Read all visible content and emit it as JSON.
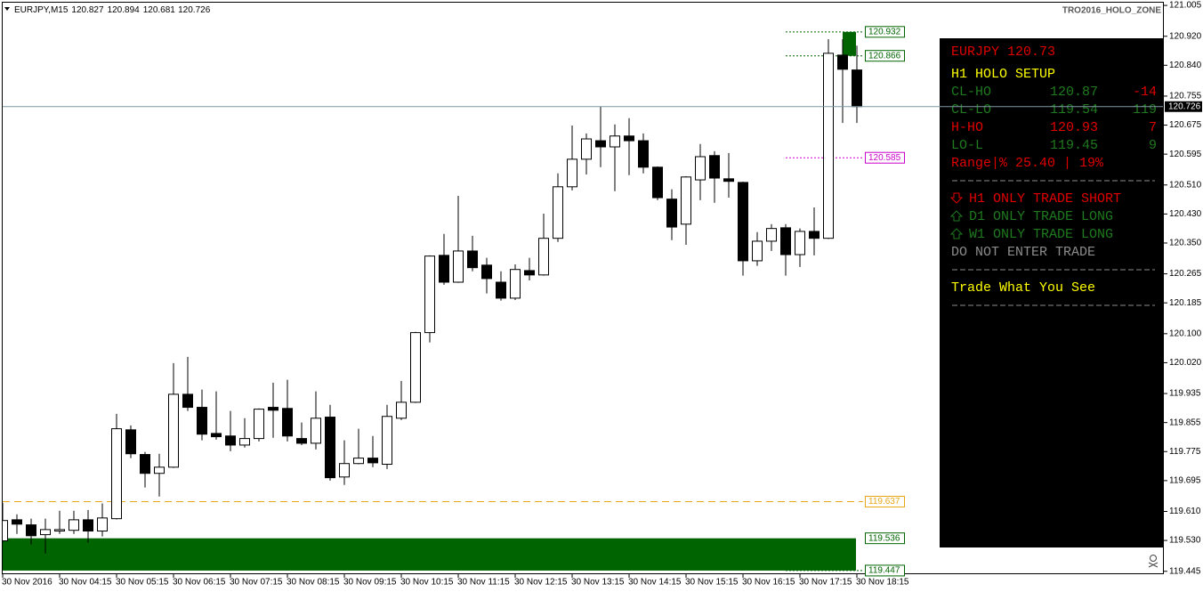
{
  "chart_data": {
    "type": "candlestick",
    "symbol": "EURJPY,M15",
    "watermark": "TRO2016_HOLO_ZONE",
    "up_color": "#ffffff",
    "down_color": "#000000",
    "categories": [
      "30 Nov 2016",
      null,
      null,
      null,
      "30 Nov 04:15",
      null,
      null,
      null,
      "30 Nov 05:15",
      null,
      null,
      null,
      "30 Nov 06:15",
      null,
      null,
      null,
      "30 Nov 07:15",
      null,
      null,
      null,
      "30 Nov 08:15",
      null,
      null,
      null,
      "30 Nov 09:15",
      null,
      null,
      null,
      "30 Nov 10:15",
      null,
      null,
      null,
      "30 Nov 11:15",
      null,
      null,
      null,
      "30 Nov 12:15",
      null,
      null,
      null,
      "30 Nov 13:15",
      null,
      null,
      null,
      "30 Nov 14:15",
      null,
      null,
      null,
      "30 Nov 15:15",
      null,
      null,
      null,
      "30 Nov 16:15",
      null,
      null,
      null,
      "30 Nov 17:15",
      null,
      null,
      null,
      "30 Nov 18:15"
    ],
    "candles": [
      {
        "open": 119.529,
        "high": 119.634,
        "low": 119.524,
        "close": 119.585
      },
      {
        "open": 119.587,
        "high": 119.602,
        "low": 119.548,
        "close": 119.575
      },
      {
        "open": 119.573,
        "high": 119.59,
        "low": 119.519,
        "close": 119.543
      },
      {
        "open": 119.546,
        "high": 119.59,
        "low": 119.494,
        "close": 119.56
      },
      {
        "open": 119.556,
        "high": 119.612,
        "low": 119.548,
        "close": 119.56
      },
      {
        "open": 119.558,
        "high": 119.612,
        "low": 119.548,
        "close": 119.587
      },
      {
        "open": 119.587,
        "high": 119.614,
        "low": 119.524,
        "close": 119.556
      },
      {
        "open": 119.556,
        "high": 119.632,
        "low": 119.541,
        "close": 119.592
      },
      {
        "open": 119.59,
        "high": 119.879,
        "low": 119.588,
        "close": 119.838
      },
      {
        "open": 119.835,
        "high": 119.847,
        "low": 119.757,
        "close": 119.769
      },
      {
        "open": 119.767,
        "high": 119.774,
        "low": 119.676,
        "close": 119.715
      },
      {
        "open": 119.715,
        "high": 119.769,
        "low": 119.651,
        "close": 119.732
      },
      {
        "open": 119.732,
        "high": 120.019,
        "low": 119.73,
        "close": 119.933
      },
      {
        "open": 119.933,
        "high": 120.036,
        "low": 119.887,
        "close": 119.897
      },
      {
        "open": 119.897,
        "high": 119.946,
        "low": 119.806,
        "close": 119.823
      },
      {
        "open": 119.825,
        "high": 119.941,
        "low": 119.808,
        "close": 119.816
      },
      {
        "open": 119.818,
        "high": 119.887,
        "low": 119.776,
        "close": 119.793
      },
      {
        "open": 119.793,
        "high": 119.867,
        "low": 119.786,
        "close": 119.811
      },
      {
        "open": 119.811,
        "high": 119.894,
        "low": 119.803,
        "close": 119.892
      },
      {
        "open": 119.897,
        "high": 119.965,
        "low": 119.813,
        "close": 119.889
      },
      {
        "open": 119.894,
        "high": 119.973,
        "low": 119.803,
        "close": 119.818
      },
      {
        "open": 119.811,
        "high": 119.855,
        "low": 119.793,
        "close": 119.798
      },
      {
        "open": 119.798,
        "high": 119.941,
        "low": 119.781,
        "close": 119.867
      },
      {
        "open": 119.87,
        "high": 119.904,
        "low": 119.695,
        "close": 119.703
      },
      {
        "open": 119.705,
        "high": 119.806,
        "low": 119.683,
        "close": 119.742
      },
      {
        "open": 119.742,
        "high": 119.838,
        "low": 119.74,
        "close": 119.757
      },
      {
        "open": 119.757,
        "high": 119.818,
        "low": 119.732,
        "close": 119.744
      },
      {
        "open": 119.74,
        "high": 119.904,
        "low": 119.727,
        "close": 119.872
      },
      {
        "open": 119.867,
        "high": 119.97,
        "low": 119.862,
        "close": 119.911
      },
      {
        "open": 119.911,
        "high": 120.105,
        "low": 119.909,
        "close": 120.103
      },
      {
        "open": 120.103,
        "high": 120.316,
        "low": 120.076,
        "close": 120.314
      },
      {
        "open": 120.316,
        "high": 120.375,
        "low": 120.235,
        "close": 120.242
      },
      {
        "open": 120.242,
        "high": 120.48,
        "low": 120.24,
        "close": 120.328
      },
      {
        "open": 120.328,
        "high": 120.37,
        "low": 120.272,
        "close": 120.282
      },
      {
        "open": 120.289,
        "high": 120.309,
        "low": 120.211,
        "close": 120.252
      },
      {
        "open": 120.242,
        "high": 120.272,
        "low": 120.191,
        "close": 120.198
      },
      {
        "open": 120.198,
        "high": 120.291,
        "low": 120.193,
        "close": 120.277
      },
      {
        "open": 120.274,
        "high": 120.309,
        "low": 120.247,
        "close": 120.262
      },
      {
        "open": 120.262,
        "high": 120.431,
        "low": 120.26,
        "close": 120.363
      },
      {
        "open": 120.363,
        "high": 120.542,
        "low": 120.353,
        "close": 120.505
      },
      {
        "open": 120.505,
        "high": 120.674,
        "low": 120.495,
        "close": 120.581
      },
      {
        "open": 120.581,
        "high": 120.652,
        "low": 120.539,
        "close": 120.637
      },
      {
        "open": 120.632,
        "high": 120.726,
        "low": 120.559,
        "close": 120.615
      },
      {
        "open": 120.615,
        "high": 120.677,
        "low": 120.493,
        "close": 120.645
      },
      {
        "open": 120.645,
        "high": 120.694,
        "low": 120.537,
        "close": 120.632
      },
      {
        "open": 120.632,
        "high": 120.652,
        "low": 120.542,
        "close": 120.559
      },
      {
        "open": 120.559,
        "high": 120.561,
        "low": 120.468,
        "close": 120.475
      },
      {
        "open": 120.471,
        "high": 120.498,
        "low": 120.358,
        "close": 120.394
      },
      {
        "open": 120.402,
        "high": 120.534,
        "low": 120.345,
        "close": 120.532
      },
      {
        "open": 120.524,
        "high": 120.623,
        "low": 120.468,
        "close": 120.588
      },
      {
        "open": 120.591,
        "high": 120.603,
        "low": 120.461,
        "close": 120.529
      },
      {
        "open": 120.527,
        "high": 120.598,
        "low": 120.475,
        "close": 120.52
      },
      {
        "open": 120.517,
        "high": 120.519,
        "low": 120.26,
        "close": 120.301
      },
      {
        "open": 120.301,
        "high": 120.38,
        "low": 120.287,
        "close": 120.355
      },
      {
        "open": 120.355,
        "high": 120.402,
        "low": 120.328,
        "close": 120.39
      },
      {
        "open": 120.392,
        "high": 120.402,
        "low": 120.26,
        "close": 120.318
      },
      {
        "open": 120.318,
        "high": 120.39,
        "low": 120.284,
        "close": 120.382
      },
      {
        "open": 120.382,
        "high": 120.448,
        "low": 120.316,
        "close": 120.363
      },
      {
        "open": 120.363,
        "high": 120.912,
        "low": 120.361,
        "close": 120.873
      },
      {
        "open": 120.868,
        "high": 120.912,
        "low": 120.681,
        "close": 120.829
      },
      {
        "open": 120.827,
        "high": 120.894,
        "low": 120.681,
        "close": 120.726
      }
    ],
    "ylim": [
      119.437,
      121.015
    ],
    "yticks": [
      121.005,
      {
        "value": 120.92,
        "label": "120.920"
      },
      {
        "value": 120.84,
        "label": "120.840"
      },
      120.755,
      120.675,
      120.595,
      {
        "value": 120.51,
        "label": "120.510"
      },
      {
        "value": 120.43,
        "label": "120.430"
      },
      {
        "value": 120.35,
        "label": "120.350"
      },
      120.265,
      120.185,
      {
        "value": 120.1,
        "label": "120.100"
      },
      {
        "value": 120.02,
        "label": "120.020"
      },
      119.935,
      119.855,
      119.775,
      119.695,
      {
        "value": 119.61,
        "label": "119.610"
      },
      {
        "value": 119.53,
        "label": "119.530"
      },
      119.445
    ],
    "levels": [
      {
        "value": 120.932,
        "color": "#006400",
        "style": "dotted"
      },
      {
        "value": 120.866,
        "color": "#006400",
        "style": "dotted"
      },
      {
        "value": 120.726,
        "color": "#7f99a6",
        "style": "price"
      },
      {
        "value": 120.585,
        "color": "#cc00cc",
        "style": "dotted"
      },
      {
        "value": 119.637,
        "color": "#e6a817",
        "style": "dashed"
      },
      {
        "value": 119.536,
        "color": "#006400",
        "style": "zone"
      },
      {
        "value": 119.447,
        "color": "#006400",
        "style": "dotted"
      }
    ],
    "zones": [
      {
        "high": 119.536,
        "low": 119.447,
        "color": "#006400"
      },
      {
        "high": 120.932,
        "low": 120.866,
        "color": "#006400"
      }
    ]
  },
  "panel": {
    "title": "EURJPY 120.73",
    "setup": "H1 HOLO SETUP",
    "rows": [
      {
        "label": "CL-HO",
        "value": "120.87",
        "diff": "-14",
        "color": "#1f7a1f",
        "diff_color": "#e00000"
      },
      {
        "label": "CL-LO",
        "value": "119.54",
        "diff": "119",
        "color": "#1f7a1f",
        "diff_color": "#1f7a1f"
      },
      {
        "label": "H-HO",
        "value": "120.93",
        "diff": "7",
        "color": "#e00000",
        "diff_color": "#e00000"
      },
      {
        "label": "LO-L",
        "value": "119.45",
        "diff": "9",
        "color": "#1f7a1f",
        "diff_color": "#1f7a1f"
      }
    ],
    "range": "Range|% 25.40 | 19%",
    "signals": [
      {
        "text": "H1 ONLY TRADE SHORT",
        "color": "#e00000",
        "arrow": "down"
      },
      {
        "text": "D1 ONLY TRADE LONG",
        "color": "#1f7a1f",
        "arrow": "up"
      },
      {
        "text": "W1 ONLY TRADE LONG",
        "color": "#1f7a1f",
        "arrow": "up"
      },
      {
        "text": "DO NOT ENTER TRADE",
        "color": "#8c8c8c",
        "arrow": null
      }
    ],
    "motto": "Trade What You See"
  }
}
